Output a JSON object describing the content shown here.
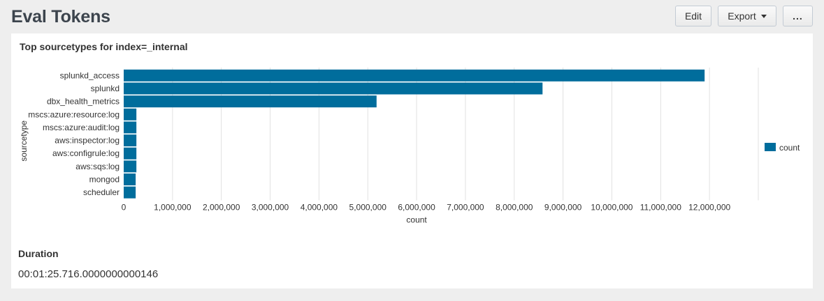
{
  "page": {
    "title": "Eval Tokens"
  },
  "toolbar": {
    "edit_label": "Edit",
    "export_label": "Export",
    "more_label": "..."
  },
  "panel": {
    "title": "Top sourcetypes for index=_internal"
  },
  "duration": {
    "title": "Duration",
    "value": "00:01:25.716.0000000000146"
  },
  "chart_data": {
    "type": "bar",
    "orientation": "horizontal",
    "categories": [
      "splunkd_access",
      "splunkd",
      "dbx_health_metrics",
      "mscs:azure:resource:log",
      "mscs:azure:audit:log",
      "aws:inspector:log",
      "aws:configrule:log",
      "aws:sqs:log",
      "mongod",
      "scheduler"
    ],
    "series": [
      {
        "name": "count",
        "values": [
          11900000,
          8580000,
          5180000,
          260000,
          260000,
          260000,
          260000,
          260000,
          245000,
          245000
        ],
        "color": "#006d9c"
      }
    ],
    "xlabel": "count",
    "ylabel": "sourcetype",
    "xlim": [
      0,
      13000000
    ],
    "xticks": [
      0,
      1000000,
      2000000,
      3000000,
      4000000,
      5000000,
      6000000,
      7000000,
      8000000,
      9000000,
      10000000,
      11000000,
      12000000
    ],
    "xtick_labels": [
      "0",
      "1,000,000",
      "2,000,000",
      "3,000,000",
      "4,000,000",
      "5,000,000",
      "6,000,000",
      "7,000,000",
      "8,000,000",
      "9,000,000",
      "10,000,000",
      "11,000,000",
      "12,000,000"
    ],
    "grid": true,
    "legend_position": "right"
  }
}
